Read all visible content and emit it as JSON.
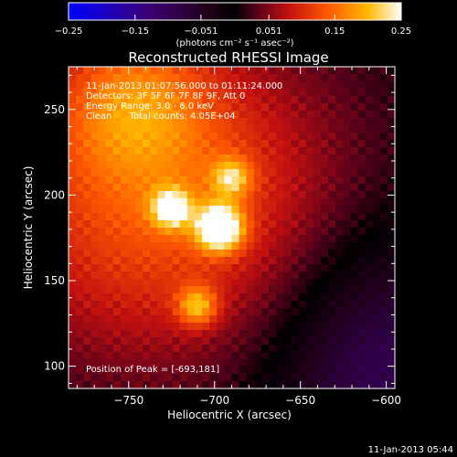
{
  "chart_data": {
    "type": "heatmap",
    "title": "Reconstructed RHESSI Image",
    "xlabel": "Heliocentric X (arcsec)",
    "ylabel": "Heliocentric Y (arcsec)",
    "xlim": [
      -785,
      -595
    ],
    "ylim": [
      87,
      275
    ],
    "xticks": [
      {
        "value": -750,
        "label": "−750"
      },
      {
        "value": -700,
        "label": "−700"
      },
      {
        "value": -650,
        "label": "−650"
      },
      {
        "value": -600,
        "label": "−600"
      }
    ],
    "yticks": [
      {
        "value": 100,
        "label": "100"
      },
      {
        "value": 150,
        "label": "150"
      },
      {
        "value": 200,
        "label": "200"
      },
      {
        "value": 250,
        "label": "250"
      }
    ],
    "colorbar": {
      "range": [
        -0.25,
        0.25
      ],
      "ticks": [
        {
          "value": -0.25,
          "label": "−0.25"
        },
        {
          "value": -0.15,
          "label": "−0.15"
        },
        {
          "value": -0.051,
          "label": "−0.051"
        },
        {
          "value": 0.051,
          "label": "0.051"
        },
        {
          "value": 0.15,
          "label": "0.15"
        },
        {
          "value": 0.25,
          "label": "0.25"
        }
      ],
      "units": "(photons cm⁻² s⁻¹ asec⁻²)",
      "colormap": "blue-black-purple-red-orange-yellow-white"
    },
    "sources": [
      {
        "x": -697,
        "y": 181,
        "peak": 0.25
      },
      {
        "x": -725,
        "y": 192,
        "peak": 0.16
      },
      {
        "x": -710,
        "y": 135,
        "peak": 0.13
      },
      {
        "x": -690,
        "y": 210,
        "peak": 0.12
      },
      {
        "x": -748,
        "y": 255,
        "peak": 0.09
      }
    ],
    "annotations": [
      "11-Jan-2013 01:07:56.000 to 01:11:24.000",
      "Detectors: 3F 5F 6F 7F 8F 9F, Att 0",
      "Energy Range: 3.0 - 6.0 keV",
      "Clean      Total counts: 4.05E+04"
    ],
    "peak_label": "Position of Peak = [-693,181]",
    "footer": "11-Jan-2013 05:44"
  }
}
